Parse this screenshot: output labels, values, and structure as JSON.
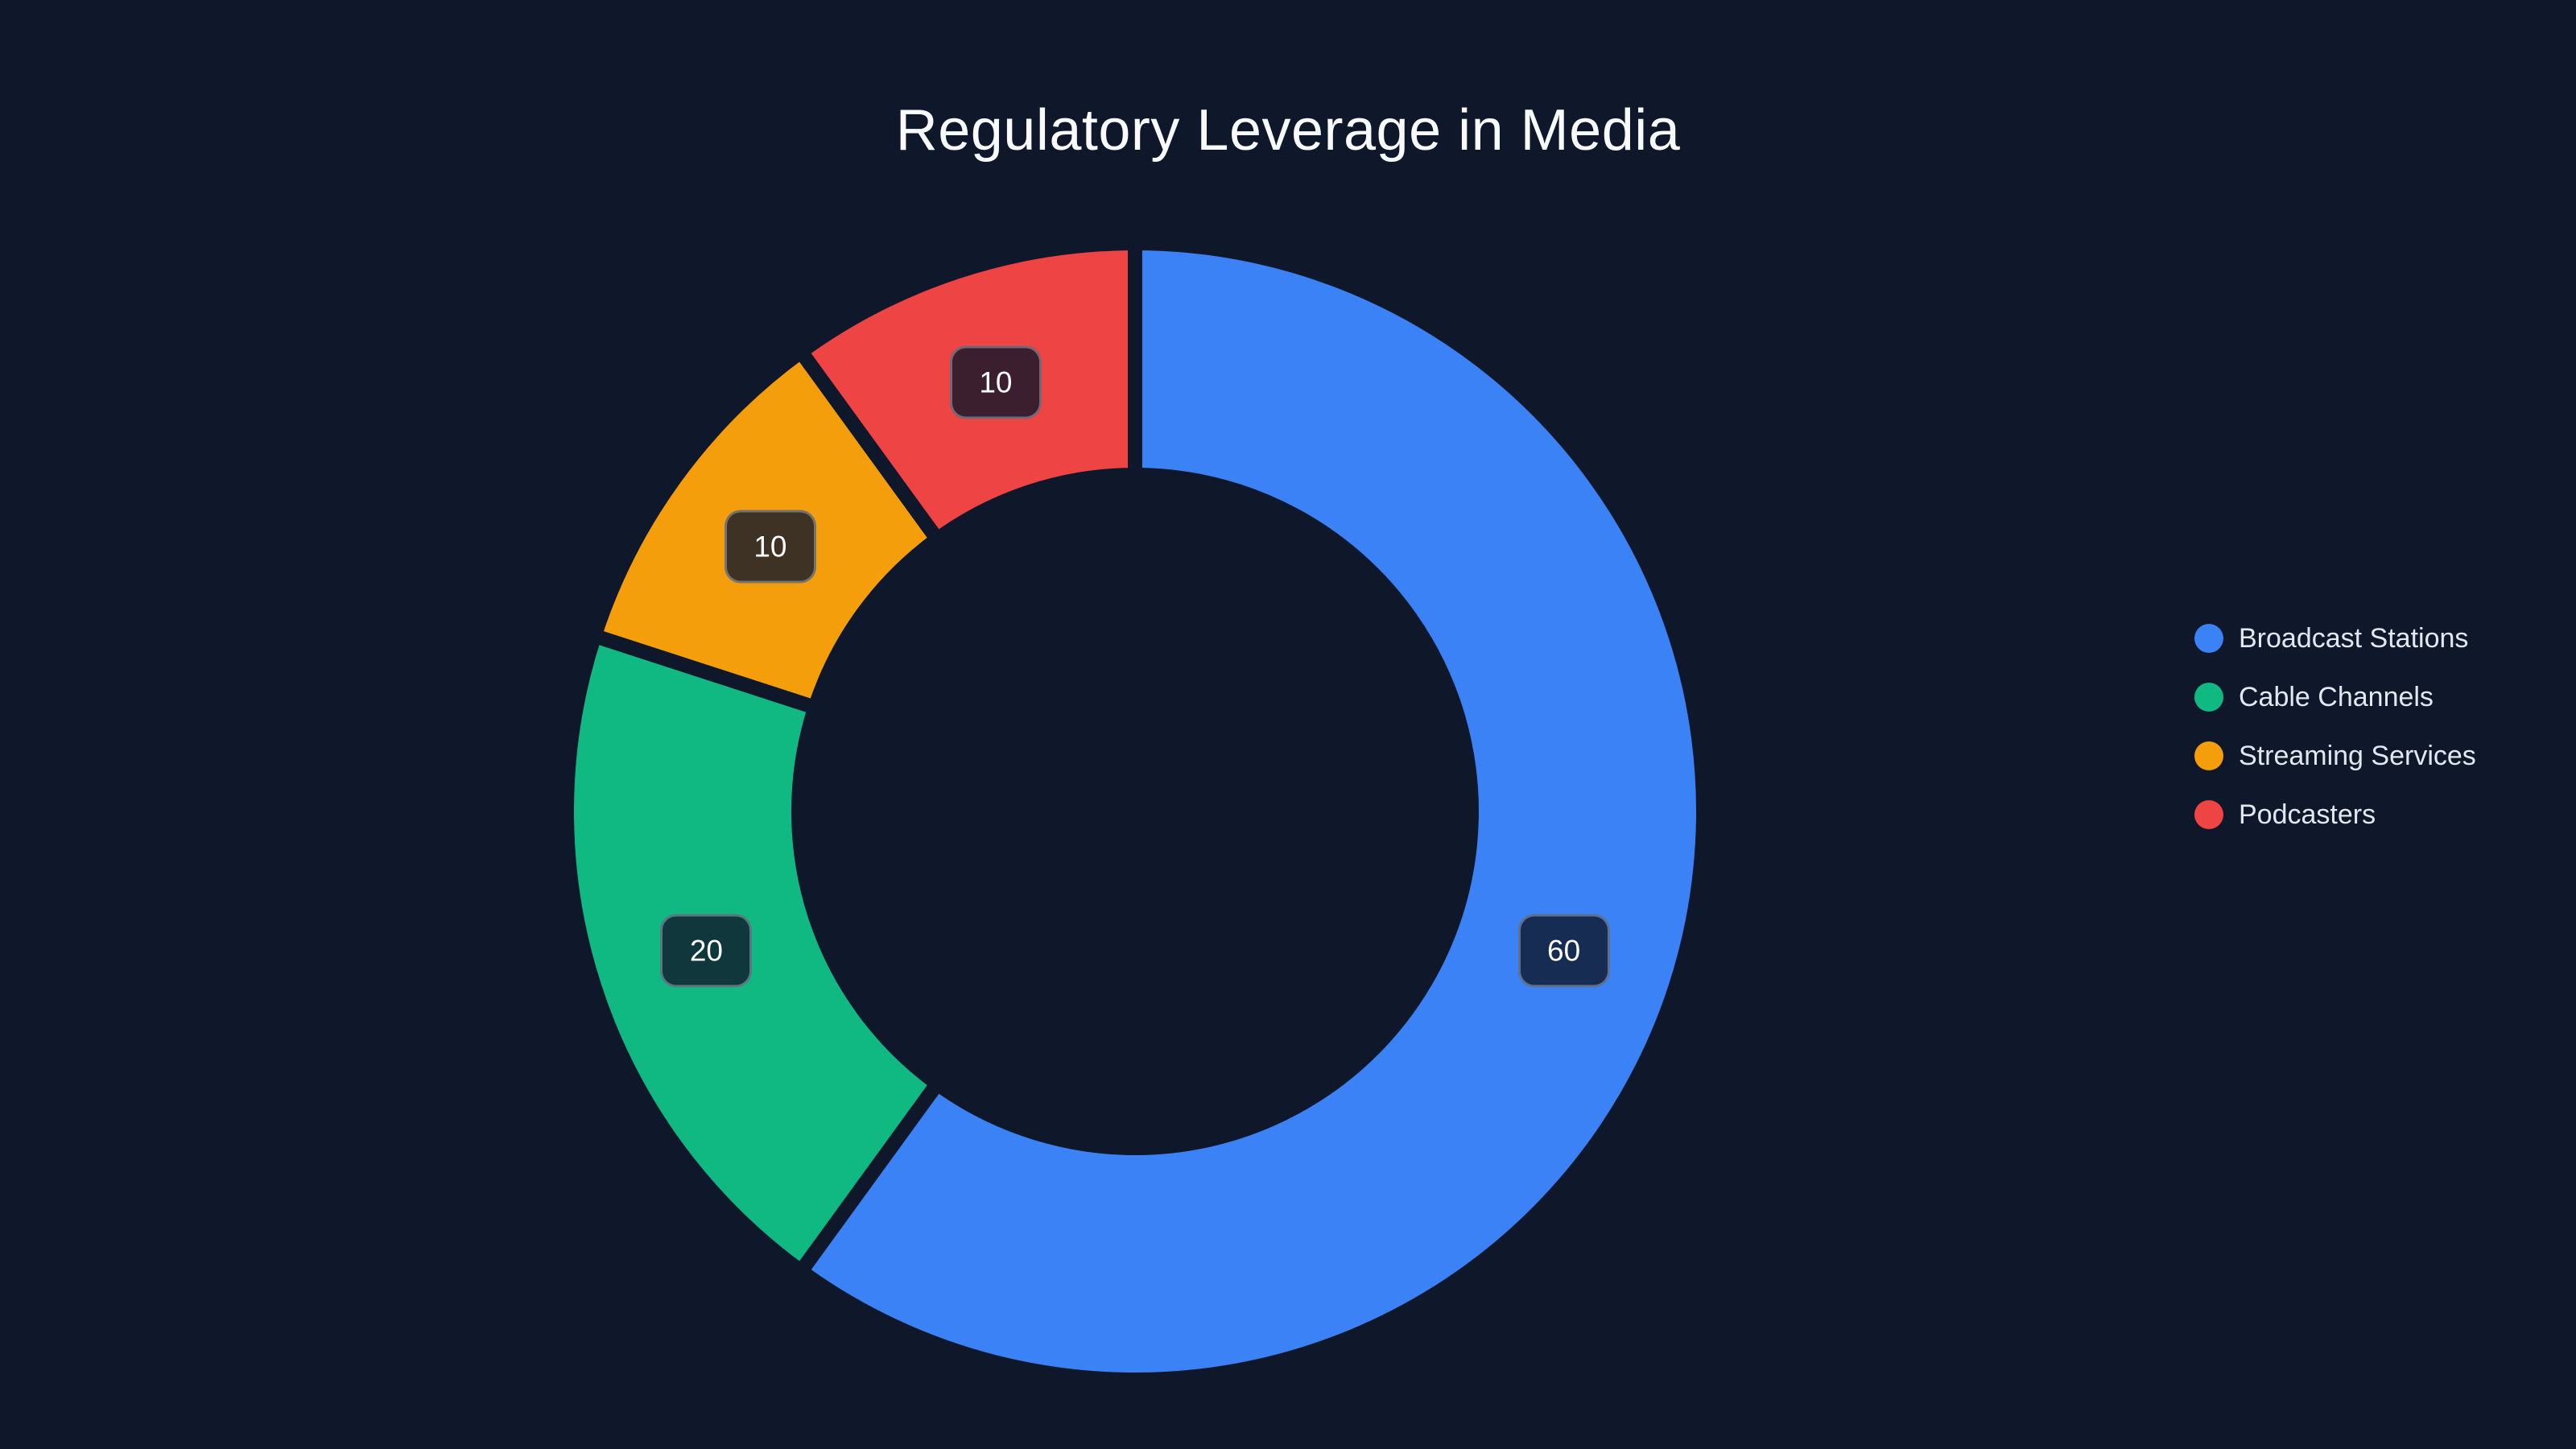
{
  "page": {
    "background_color": "#0F172A",
    "title_color": "#F8FAFC",
    "legend_text_color": "#E2E8F0",
    "badge_background": "rgba(15,23,42,0.80)",
    "badge_text_color": "#FFFFFF"
  },
  "chart_data": {
    "type": "pie",
    "title": "Regulatory Leverage in Media",
    "donut": true,
    "inner_radius_pct": 61,
    "start_angle_deg": 0,
    "direction": "clockwise",
    "legend_position": "right",
    "value_labels": "inside",
    "categories": [
      "Broadcast Stations",
      "Cable Channels",
      "Streaming Services",
      "Podcasters"
    ],
    "values": [
      60,
      20,
      10,
      10
    ],
    "slices": [
      {
        "label": "Broadcast Stations",
        "value": 60,
        "color": "#3B82F6"
      },
      {
        "label": "Cable Channels",
        "value": 20,
        "color": "#10B981"
      },
      {
        "label": "Streaming Services",
        "value": 10,
        "color": "#F59E0B"
      },
      {
        "label": "Podcasters",
        "value": 10,
        "color": "#EF4444"
      }
    ]
  }
}
